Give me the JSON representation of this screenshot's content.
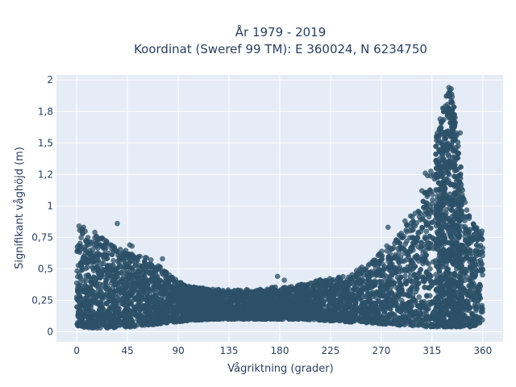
{
  "chart_data": {
    "type": "scatter",
    "title": "År 1979 - 2019",
    "subtitle": "Koordinat (Sweref 99 TM): E 360024, N 6234750",
    "xlabel": "Vågriktning (grader)",
    "ylabel": "Signifikant våghöjd (m)",
    "xlim": [
      -18,
      378
    ],
    "ylim": [
      -0.08,
      2.04
    ],
    "xticks": [
      0,
      45,
      90,
      135,
      180,
      225,
      270,
      315,
      360
    ],
    "xtick_labels": [
      "0",
      "45",
      "90",
      "135",
      "180",
      "225",
      "270",
      "315",
      "360"
    ],
    "yticks": [
      0,
      0.25,
      0.5,
      0.75,
      1,
      1.25,
      1.5,
      1.75,
      2
    ],
    "ytick_labels": [
      "0",
      "0,25",
      "0,5",
      "0,75",
      "1",
      "1,2",
      "1,5",
      "1,8",
      "2"
    ],
    "grid": true,
    "colors": {
      "marker": "#2c5068",
      "plot_bg": "#e5ecf6",
      "text": "#2a3f5f"
    },
    "envelope": {
      "x": [
        0,
        5,
        10,
        20,
        30,
        40,
        50,
        60,
        70,
        80,
        90,
        100,
        120,
        140,
        160,
        180,
        200,
        220,
        240,
        260,
        270,
        280,
        290,
        300,
        310,
        315,
        320,
        325,
        330,
        333,
        336,
        340,
        345,
        350,
        355,
        360
      ],
      "y_low": [
        0.05,
        0.04,
        0.03,
        0.03,
        0.03,
        0.04,
        0.04,
        0.05,
        0.06,
        0.07,
        0.08,
        0.09,
        0.1,
        0.1,
        0.1,
        0.1,
        0.1,
        0.09,
        0.08,
        0.07,
        0.06,
        0.06,
        0.05,
        0.05,
        0.04,
        0.04,
        0.04,
        0.04,
        0.04,
        0.04,
        0.04,
        0.04,
        0.04,
        0.04,
        0.05,
        0.05
      ],
      "y_high": [
        0.8,
        0.82,
        0.78,
        0.76,
        0.7,
        0.66,
        0.62,
        0.6,
        0.55,
        0.48,
        0.4,
        0.36,
        0.34,
        0.33,
        0.34,
        0.36,
        0.38,
        0.42,
        0.45,
        0.55,
        0.65,
        0.72,
        0.82,
        0.95,
        1.15,
        1.35,
        1.6,
        1.85,
        1.93,
        1.9,
        1.7,
        1.35,
        1.05,
        0.9,
        0.82,
        0.8
      ]
    },
    "outliers": [
      {
        "x": 2,
        "y": 0.84
      },
      {
        "x": 6,
        "y": 0.83
      },
      {
        "x": 16,
        "y": 0.79
      },
      {
        "x": 36,
        "y": 0.86
      },
      {
        "x": 47,
        "y": 0.69
      },
      {
        "x": 49,
        "y": 0.68
      },
      {
        "x": 76,
        "y": 0.58
      },
      {
        "x": 178,
        "y": 0.44
      },
      {
        "x": 184,
        "y": 0.41
      },
      {
        "x": 276,
        "y": 0.83
      },
      {
        "x": 291,
        "y": 0.88
      },
      {
        "x": 296,
        "y": 0.92
      },
      {
        "x": 306,
        "y": 1.12
      },
      {
        "x": 309,
        "y": 1.26
      },
      {
        "x": 311,
        "y": 1.24
      },
      {
        "x": 319,
        "y": 1.52
      },
      {
        "x": 323,
        "y": 1.62
      },
      {
        "x": 330,
        "y": 1.94
      },
      {
        "x": 332,
        "y": 1.93
      },
      {
        "x": 340,
        "y": 1.58
      }
    ]
  }
}
